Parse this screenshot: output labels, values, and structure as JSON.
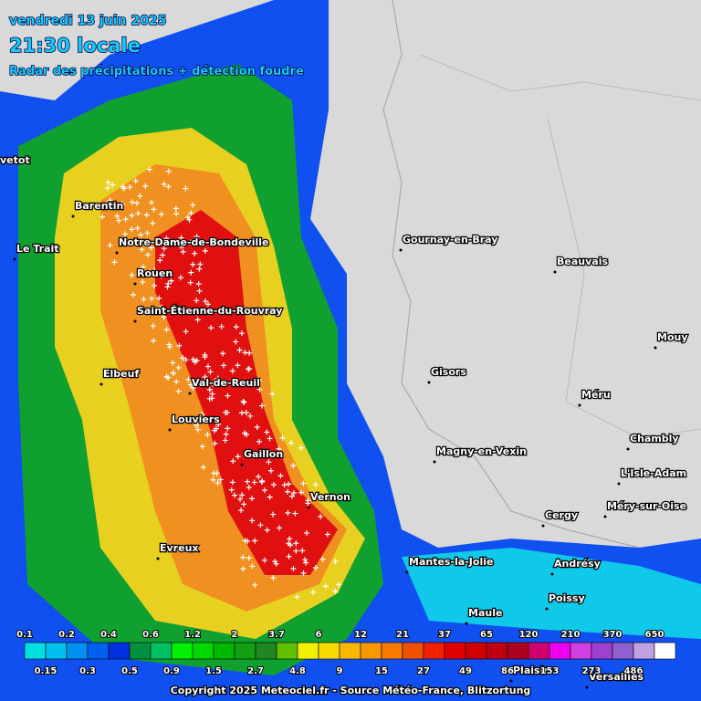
{
  "header": {
    "date": "vendredi 13 juin 2025",
    "time": "21:30 locale",
    "subtitle": "Radar des précipitations + détection foudre"
  },
  "cities": [
    "vetot",
    "Barentin",
    "Le Trait",
    "Notre-Dame-de-Bondeville",
    "Rouen",
    "Saint-Étienne-du-Rouvray",
    "Elbeuf",
    "Val-de-Reuil",
    "Louviers",
    "Gaillon",
    "Vernon",
    "Evreux",
    "Gournay-en-Bray",
    "Beauvais",
    "Mouy",
    "Gisors",
    "Méru",
    "Chambly",
    "Magny-en-Vexin",
    "L'Isle-Adam",
    "Méry-sur-Oise",
    "Cergy",
    "Mantes-la-Jolie",
    "Andrésy",
    "Poissy",
    "Maule",
    "Plaisir",
    "Versailles"
  ],
  "legend": {
    "labels": [
      0.1,
      0.15,
      0.2,
      0.3,
      0.4,
      0.5,
      0.6,
      0.9,
      1.2,
      1.5,
      2,
      2.7,
      3.7,
      4.8,
      6,
      9,
      12,
      15,
      21,
      27,
      37,
      49,
      65,
      86,
      120,
      153,
      210,
      273,
      370,
      486,
      650
    ],
    "colors": [
      "#00e0e0",
      "#00c0f0",
      "#0090f0",
      "#0060f0",
      "#0030e0",
      "#009040",
      "#00c060",
      "#00f000",
      "#00d800",
      "#00b800",
      "#10a010",
      "#208820",
      "#60c000",
      "#f0f000",
      "#f8d800",
      "#f8b800",
      "#f89800",
      "#f87800",
      "#f05000",
      "#f02000",
      "#e00000",
      "#d00000",
      "#c00010",
      "#b00020",
      "#d00070",
      "#f000f0",
      "#d040e0",
      "#a040d0",
      "#9060d0",
      "#c0a0e0",
      "#ffffff"
    ]
  },
  "footer": "Copyright 2025 Meteociel.fr - Source Météo-France, Blitzortung"
}
